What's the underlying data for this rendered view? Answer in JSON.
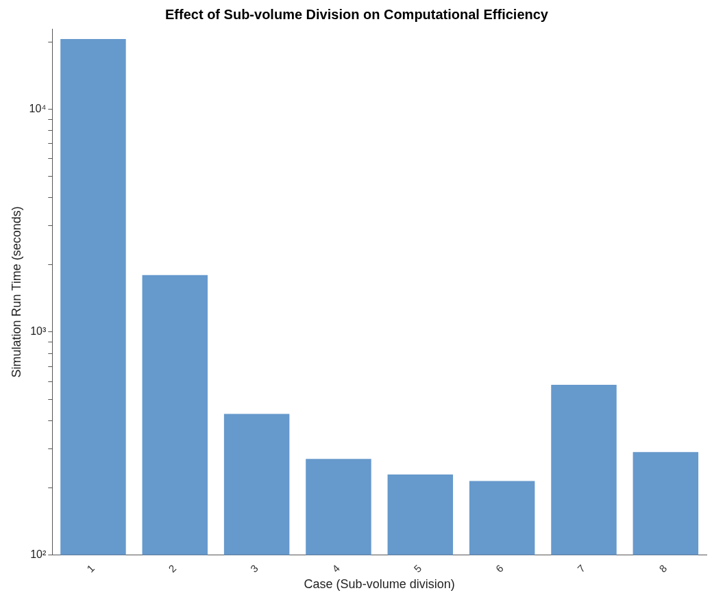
{
  "chart_data": {
    "type": "bar",
    "title": "Effect of Sub-volume Division on Computational Efficiency",
    "xlabel": "Case (Sub-volume division)",
    "ylabel": "Simulation Run Time (seconds)",
    "categories": [
      "1",
      "2",
      "3",
      "4",
      "5",
      "6",
      "7",
      "8"
    ],
    "values": [
      20600,
      1800,
      430,
      270,
      230,
      215,
      580,
      290
    ],
    "color": "#6699cc",
    "log": true,
    "ylim": [
      100,
      22900
    ],
    "yticks": [
      {
        "value": 100,
        "label": "10²"
      },
      {
        "value": 200,
        "label": null
      },
      {
        "value": 300,
        "label": null
      },
      {
        "value": 400,
        "label": null
      },
      {
        "value": 500,
        "label": null
      },
      {
        "value": 600,
        "label": null
      },
      {
        "value": 700,
        "label": null
      },
      {
        "value": 800,
        "label": null
      },
      {
        "value": 900,
        "label": null
      },
      {
        "value": 1000,
        "label": "10³"
      },
      {
        "value": 2000,
        "label": null
      },
      {
        "value": 3000,
        "label": null
      },
      {
        "value": 4000,
        "label": null
      },
      {
        "value": 5000,
        "label": null
      },
      {
        "value": 6000,
        "label": null
      },
      {
        "value": 7000,
        "label": null
      },
      {
        "value": 8000,
        "label": null
      },
      {
        "value": 9000,
        "label": null
      },
      {
        "value": 10000,
        "label": "10⁴"
      },
      {
        "value": 20000,
        "label": null
      }
    ],
    "grid": false,
    "legend": false
  }
}
